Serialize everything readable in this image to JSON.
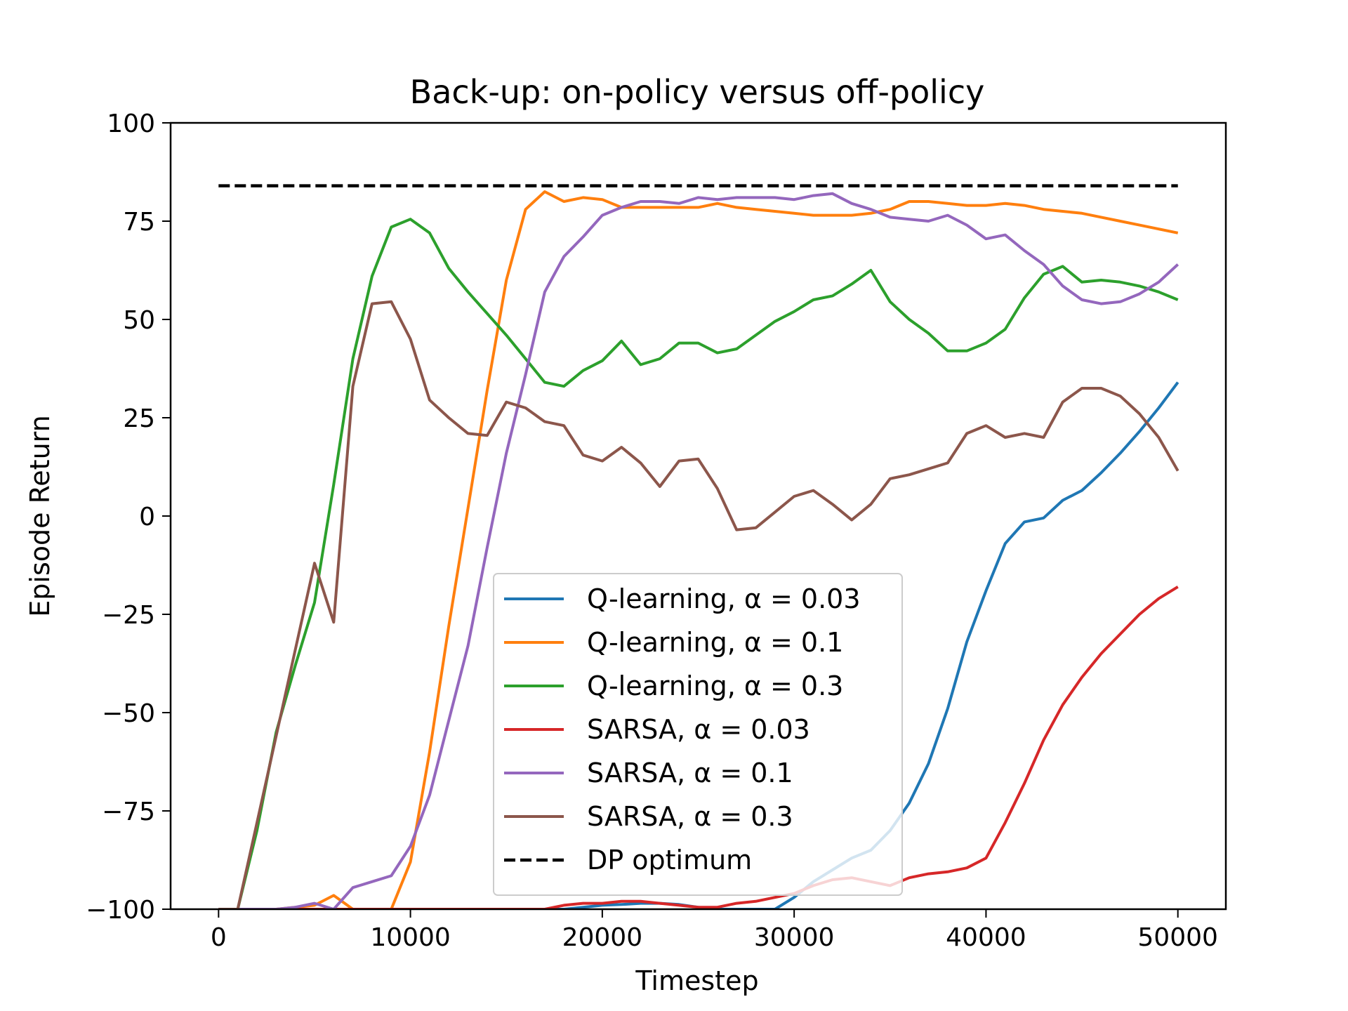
{
  "chart_data": {
    "type": "line",
    "title": "Back-up: on-policy versus off-policy",
    "xlabel": "Timestep",
    "ylabel": "Episode Return",
    "xlim": [
      -2500,
      52500
    ],
    "ylim": [
      -100,
      100
    ],
    "xticks": [
      0,
      10000,
      20000,
      30000,
      40000,
      50000
    ],
    "yticks": [
      -100,
      -75,
      -50,
      -25,
      0,
      25,
      50,
      75,
      100
    ],
    "xtick_labels": [
      "0",
      "10000",
      "20000",
      "30000",
      "40000",
      "50000"
    ],
    "ytick_labels": [
      "−100",
      "−75",
      "−50",
      "−25",
      "0",
      "25",
      "50",
      "75",
      "100"
    ],
    "grid": false,
    "legend_position": "lower-center",
    "x": [
      0,
      1000,
      2000,
      3000,
      4000,
      5000,
      6000,
      7000,
      8000,
      9000,
      10000,
      11000,
      12000,
      13000,
      14000,
      15000,
      16000,
      17000,
      18000,
      19000,
      20000,
      21000,
      22000,
      23000,
      24000,
      25000,
      26000,
      27000,
      28000,
      29000,
      30000,
      31000,
      32000,
      33000,
      34000,
      35000,
      36000,
      37000,
      38000,
      39000,
      40000,
      41000,
      42000,
      43000,
      44000,
      45000,
      46000,
      47000,
      48000,
      49000,
      50000
    ],
    "series": [
      {
        "name": "Q-learning, α = 0.03",
        "color": "#1f77b4",
        "dashed": false,
        "values": [
          -100,
          -100,
          -100,
          -100,
          -100,
          -100,
          -100,
          -100,
          -100,
          -100,
          -100,
          -100,
          -100,
          -100,
          -100,
          -100,
          -100,
          -100,
          -100,
          -99.5,
          -99,
          -98.8,
          -98.5,
          -98.5,
          -98.8,
          -99.5,
          -100,
          -100,
          -100,
          -100,
          -97,
          -93,
          -90,
          -87,
          -85,
          -80,
          -73,
          -63,
          -49,
          -32,
          -19,
          -7,
          -1.5,
          -0.5,
          4,
          6.5,
          11,
          16,
          21.5,
          27.5,
          34
        ]
      },
      {
        "name": "Q-learning, α = 0.1",
        "color": "#ff7f0e",
        "dashed": false,
        "values": [
          -100,
          -100,
          -100,
          -100,
          -99.5,
          -99,
          -96.5,
          -100,
          -100,
          -100,
          -88,
          -60,
          -28,
          2,
          32,
          60,
          78,
          82.5,
          80,
          81,
          80.5,
          78.5,
          78.5,
          78.5,
          78.5,
          78.5,
          79.5,
          78.5,
          78,
          77.5,
          77,
          76.5,
          76.5,
          76.5,
          77,
          78,
          80,
          80,
          79.5,
          79,
          79,
          79.5,
          79,
          78,
          77.5,
          77,
          76,
          75,
          74,
          73,
          72
        ]
      },
      {
        "name": "Q-learning, α = 0.3",
        "color": "#2ca02c",
        "dashed": false,
        "values": [
          -100,
          -100,
          -80,
          -55,
          -38,
          -22,
          8,
          40,
          61,
          73.5,
          75.5,
          72,
          63,
          57,
          51.5,
          46,
          40,
          34,
          33,
          37,
          39.5,
          44.5,
          38.5,
          40,
          44,
          44,
          41.5,
          42.5,
          46,
          49.5,
          52,
          55,
          56,
          59,
          62.5,
          54.5,
          50,
          46.5,
          42,
          42,
          44,
          47.5,
          55.5,
          61.5,
          63.5,
          59.5,
          60,
          59.5,
          58.5,
          57,
          55
        ]
      },
      {
        "name": "SARSA, α = 0.03",
        "color": "#d62728",
        "dashed": false,
        "values": [
          -100,
          -100,
          -100,
          -100,
          -100,
          -100,
          -100,
          -100,
          -100,
          -100,
          -100,
          -100,
          -100,
          -100,
          -100,
          -100,
          -100,
          -100,
          -99,
          -98.5,
          -98.5,
          -98,
          -98,
          -98.5,
          -99,
          -99.5,
          -99.5,
          -98.5,
          -98,
          -97,
          -96,
          -94,
          -92.5,
          -92,
          -93,
          -94,
          -92,
          -91,
          -90.5,
          -89.5,
          -87,
          -78,
          -68,
          -57,
          -48,
          -41,
          -35,
          -30,
          -25,
          -21,
          -18
        ]
      },
      {
        "name": "SARSA, α = 0.1",
        "color": "#9467bd",
        "dashed": false,
        "values": [
          -100,
          -100,
          -100,
          -100,
          -99.5,
          -98.5,
          -100,
          -94.5,
          -93,
          -91.5,
          -84,
          -71,
          -52,
          -33,
          -8,
          16,
          36,
          57,
          66,
          71,
          76.5,
          78.5,
          80,
          80,
          79.5,
          81,
          80.5,
          81,
          81,
          81,
          80.5,
          81.5,
          82,
          79.5,
          78,
          76,
          75.5,
          75,
          76.5,
          74,
          70.5,
          71.5,
          67.5,
          64,
          58.5,
          55,
          54,
          54.5,
          56.5,
          59.5,
          64
        ]
      },
      {
        "name": "SARSA, α = 0.3",
        "color": "#8c564b",
        "dashed": false,
        "values": [
          -100,
          -100,
          -78,
          -56,
          -34,
          -12,
          -27,
          33,
          54,
          54.5,
          45,
          29.5,
          25,
          21,
          20.5,
          29,
          27.5,
          24,
          23,
          15.5,
          14,
          17.5,
          13.5,
          7.5,
          14,
          14.5,
          7,
          -3.5,
          -3,
          1,
          5,
          6.5,
          3,
          -1,
          3,
          9.5,
          10.5,
          12,
          13.5,
          21,
          23,
          20,
          21,
          20,
          29,
          32.5,
          32.5,
          30.5,
          26,
          20,
          11.5
        ]
      },
      {
        "name": "DP optimum",
        "color": "#000000",
        "dashed": true,
        "values": [
          84,
          84,
          84,
          84,
          84,
          84,
          84,
          84,
          84,
          84,
          84,
          84,
          84,
          84,
          84,
          84,
          84,
          84,
          84,
          84,
          84,
          84,
          84,
          84,
          84,
          84,
          84,
          84,
          84,
          84,
          84,
          84,
          84,
          84,
          84,
          84,
          84,
          84,
          84,
          84,
          84,
          84,
          84,
          84,
          84,
          84,
          84,
          84,
          84,
          84,
          84
        ]
      }
    ]
  }
}
